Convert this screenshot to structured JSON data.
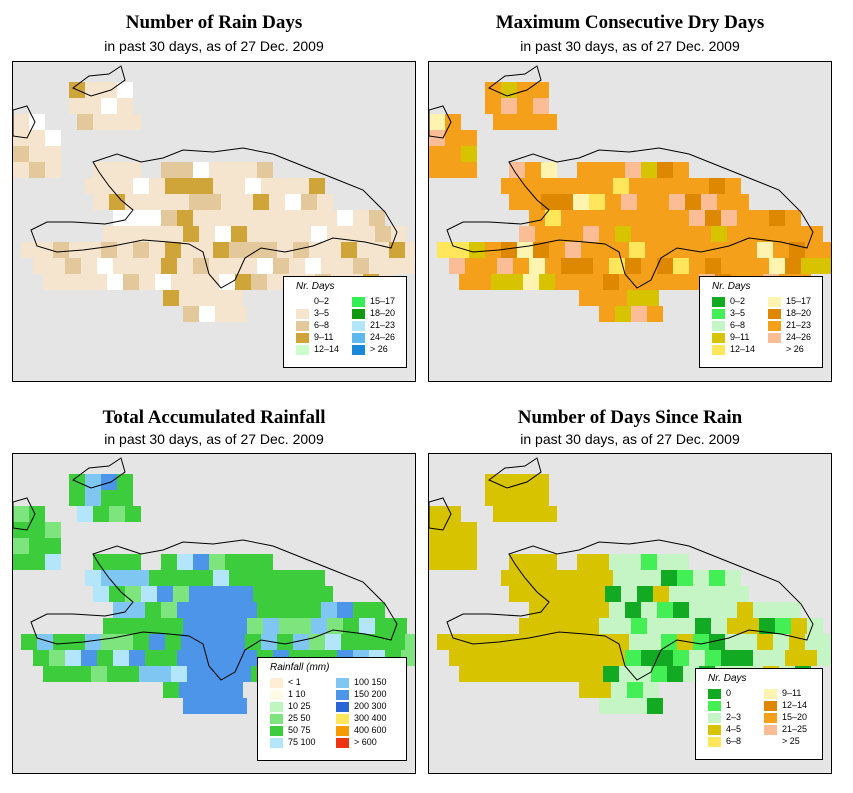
{
  "panels": [
    {
      "title": "Number of Rain Days",
      "subtitle": "in past 30 days, as of  27 Dec. 2009",
      "legend": {
        "title": "Nr. Days",
        "items": [
          {
            "label": "0–2",
            "color": "#ffffff"
          },
          {
            "label": "3–5",
            "color": "#f5e5cf"
          },
          {
            "label": "6–8",
            "color": "#e2c89a"
          },
          {
            "label": "9–11",
            "color": "#cfa53a"
          },
          {
            "label": "12–14",
            "color": "#ccffcc"
          },
          {
            "label": "15–17",
            "color": "#33ee55"
          },
          {
            "label": "18–20",
            "color": "#119911"
          },
          {
            "label": "21–23",
            "color": "#b3e5fb"
          },
          {
            "label": "24–26",
            "color": "#5bb9f0"
          },
          {
            "label": "> 26",
            "color": "#1988d8"
          }
        ]
      },
      "map": {
        "base": "#f5e5cf",
        "alt": [
          "#ffffff",
          "#e2c89a",
          "#cfa53a"
        ]
      }
    },
    {
      "title": "Maximum Consecutive Dry Days",
      "subtitle": "in past 30 days, as of  27 Dec. 2009",
      "legend": {
        "title": "Nr. Days",
        "items": [
          {
            "label": "0–2",
            "color": "#11aa22"
          },
          {
            "label": "3–5",
            "color": "#44ee55"
          },
          {
            "label": "6–8",
            "color": "#c5f5c5"
          },
          {
            "label": "9–11",
            "color": "#d7c300"
          },
          {
            "label": "12–14",
            "color": "#ffe65a"
          },
          {
            "label": "15–17",
            "color": "#fff3b0"
          },
          {
            "label": "18–20",
            "color": "#dd8800"
          },
          {
            "label": "21–23",
            "color": "#f5a01a"
          },
          {
            "label": "24–26",
            "color": "#fbbd95"
          },
          {
            "label": "> 26",
            "color": "#ffffff"
          }
        ]
      },
      "map": {
        "base": "#f5a01a",
        "alt": [
          "#ffe65a",
          "#fbbd95",
          "#dd8800",
          "#d7c300",
          "#fff3b0"
        ]
      }
    },
    {
      "title": "Total Accumulated Rainfall",
      "subtitle": "in past 30 days, as of  27 Dec. 2009",
      "legend": {
        "title": "Rainfall (mm)",
        "items": [
          {
            "label": "< 1",
            "color": "#ffedd5"
          },
          {
            "label": "1    10",
            "color": "#fffbe6"
          },
          {
            "label": "10    25",
            "color": "#bff5bf"
          },
          {
            "label": "25    50",
            "color": "#7ee57e"
          },
          {
            "label": "50    75",
            "color": "#3ccc3c"
          },
          {
            "label": "75    100",
            "color": "#b3e5fb"
          },
          {
            "label": "100    150",
            "color": "#7fc6f2"
          },
          {
            "label": "150    200",
            "color": "#4c95e8"
          },
          {
            "label": "200    300",
            "color": "#2a65d8"
          },
          {
            "label": "300    400",
            "color": "#ffe65a"
          },
          {
            "label": "400    600",
            "color": "#f59a00"
          },
          {
            "label": "> 600",
            "color": "#ee3311"
          }
        ]
      },
      "map": {
        "base": "#3ccc3c",
        "alt": [
          "#7ee57e",
          "#7fc6f2",
          "#4c95e8",
          "#b3e5fb"
        ]
      }
    },
    {
      "title": "Number of Days Since Rain",
      "subtitle": "in past 30 days, as of  27 Dec. 2009",
      "legend": {
        "title": "Nr. Days",
        "items": [
          {
            "label": "0",
            "color": "#11aa22"
          },
          {
            "label": "1",
            "color": "#44ee55"
          },
          {
            "label": "2–3",
            "color": "#c5f5c5"
          },
          {
            "label": "4–5",
            "color": "#d7c300"
          },
          {
            "label": "6–8",
            "color": "#ffe65a"
          },
          {
            "label": "9–11",
            "color": "#fff3b0"
          },
          {
            "label": "12–14",
            "color": "#dd8800"
          },
          {
            "label": "15–20",
            "color": "#f5a01a"
          },
          {
            "label": "21–25",
            "color": "#fbbd95"
          },
          {
            "label": "> 25",
            "color": "#ffffff"
          }
        ]
      },
      "map": {
        "base": "#c5f5c5",
        "alt": [
          "#d7c300",
          "#44ee55",
          "#11aa22"
        ]
      }
    }
  ]
}
